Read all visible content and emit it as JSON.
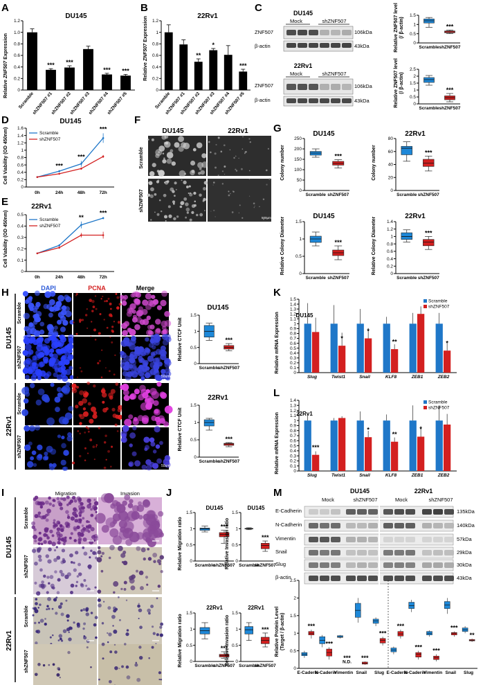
{
  "panels": {
    "A": {
      "letter": "A",
      "title": "DU145",
      "ylabel_pre": "Relative ",
      "ylabel_gene": "ZNF507",
      "ylabel_post": " Expression"
    },
    "B": {
      "letter": "B",
      "title": "22Rv1",
      "ylabel_pre": "Relative ",
      "ylabel_gene": "ZNF507",
      "ylabel_post": " Expression"
    },
    "C": {
      "letter": "C",
      "line1": "DU145",
      "line2": "22Rv1",
      "mock": "Mock",
      "sh": "shZNF507",
      "rows": [
        "ZNF507",
        "β-actin"
      ],
      "kda": [
        "106kDa",
        "43kDa"
      ],
      "ylabel": "Relative ZNF507 level",
      "ylabel2": "(/ β-actin)"
    },
    "D": {
      "letter": "D",
      "title": "DU145",
      "ylabel": "Cell Viability (OD 450nm)"
    },
    "E": {
      "letter": "E",
      "title": "22Rv1",
      "ylabel": "Cell Viability (OD 450nm)"
    },
    "F": {
      "letter": "F",
      "col1": "DU145",
      "col2": "22Rv1",
      "row1": "Scramble",
      "row2": "shZNF507",
      "scale": "500μm"
    },
    "G": {
      "letter": "G",
      "t1": "DU145",
      "t2": "22Rv1",
      "t3": "DU145",
      "t4": "22Rv1",
      "yl1": "Colony number",
      "yl2": "Relative  Colony Diameter"
    },
    "H": {
      "letter": "H",
      "c1": "DAPI",
      "c2": "PCNA",
      "c3": "Merge",
      "r1": "Scramble",
      "r2": "shZNF507",
      "g1": "DU145",
      "g2": "22Rv1",
      "t1": "DU145",
      "t2": "22Rv1",
      "ylabel": "Relative CTCF Unit",
      "scale": "50um"
    },
    "I": {
      "letter": "I",
      "c1": "Migration",
      "c2": "Invasion",
      "r1": "Scramble",
      "r2": "shZNF507",
      "g1": "DU145",
      "g2": "22Rv1"
    },
    "J": {
      "letter": "J",
      "t1": "DU145",
      "t2": "DU145",
      "t3": "22Rv1",
      "t4": "22Rv1",
      "yl1": "Relative Migration ratio",
      "yl2": "Relative Invasion ratio"
    },
    "K": {
      "letter": "K",
      "title": "DU145",
      "ylabel": "Relative mRNA Expression"
    },
    "L": {
      "letter": "L",
      "title": "22Rv1",
      "ylabel": "Relative mRNA Expression"
    },
    "M": {
      "letter": "M",
      "g1": "DU145",
      "g2": "22Rv1",
      "mock": "Mock",
      "sh": "shZNF507",
      "rows": [
        "E-Cadherin",
        "N-Cadherin",
        "Vimentin",
        "Snail",
        "Slug",
        "β-actin"
      ],
      "kda": [
        "135kDa",
        "140kDa",
        "57kDa",
        "29kDa",
        "30kDa",
        "43kDa"
      ],
      "ylabel": "Relative Protein Level",
      "ylabel2": "(Target / β-actin)",
      "nd": "N.D."
    }
  },
  "colors": {
    "scramble": "#1f77c8",
    "sh": "#d32020",
    "boxblue": "#1e88d8",
    "boxred": "#d11f1f",
    "bar_black": "#000000"
  },
  "chart_data": [
    {
      "id": "A",
      "type": "bar",
      "title": "DU145",
      "ylabel": "Relative ZNF507 Expression",
      "categories": [
        "Scramble",
        "shZNF507 #1",
        "shZNF507 #2",
        "shZNF507 #3",
        "shZNF507 #4",
        "shZNF507 #5"
      ],
      "values": [
        1.0,
        0.35,
        0.39,
        0.71,
        0.27,
        0.25
      ],
      "errors": [
        0.06,
        0.02,
        0.03,
        0.05,
        0.02,
        0.02
      ],
      "sig": [
        "",
        "***",
        "***",
        "",
        "***",
        "***"
      ],
      "ylim": [
        0,
        1.2
      ],
      "yticks": [
        "0",
        "0.2",
        "0.4",
        "0.6",
        "0.8",
        "1.0",
        "1.2"
      ]
    },
    {
      "id": "B",
      "type": "bar",
      "title": "22Rv1",
      "ylabel": "Relative ZNF507 Expression",
      "categories": [
        "Scramble",
        "shZNF507 #1",
        "shZNF507 #2",
        "shZNF507 #3",
        "shZNF507 #4",
        "shZNF507 #5"
      ],
      "values": [
        1.0,
        0.79,
        0.49,
        0.69,
        0.61,
        0.32
      ],
      "errors": [
        0.13,
        0.08,
        0.05,
        0.03,
        0.16,
        0.04
      ],
      "sig": [
        "",
        "",
        "**",
        "*",
        "",
        "***"
      ],
      "ylim": [
        0,
        1.2
      ],
      "yticks": [
        "0",
        "0.2",
        "0.4",
        "0.6",
        "0.8",
        "1",
        "1.2"
      ]
    },
    {
      "id": "C1",
      "type": "box",
      "ylim": [
        0,
        1.5
      ],
      "yticks": [
        "0",
        "0.5",
        "1",
        "1.5"
      ],
      "categories": [
        "Scramble",
        "shZNF507"
      ],
      "boxes": [
        [
          0.85,
          1.08,
          1.2,
          1.3,
          1.38
        ],
        [
          0.5,
          0.55,
          0.6,
          0.65,
          0.7
        ]
      ],
      "sig": [
        "",
        "***"
      ]
    },
    {
      "id": "C2",
      "type": "box",
      "ylim": [
        0,
        2.5
      ],
      "yticks": [
        "0",
        "0.5",
        "1",
        "1.5",
        "2",
        "2.5"
      ],
      "categories": [
        "Scramble",
        "shZNF507"
      ],
      "boxes": [
        [
          1.35,
          1.55,
          1.75,
          1.9,
          2.05
        ],
        [
          0.15,
          0.3,
          0.45,
          0.58,
          0.75
        ]
      ],
      "sig": [
        "",
        "***"
      ]
    },
    {
      "id": "D",
      "type": "line",
      "title": "DU145",
      "x": [
        "0h",
        "24h",
        "48h",
        "72h"
      ],
      "series": [
        {
          "name": "Scramble",
          "values": [
            0.27,
            0.43,
            0.63,
            1.33
          ],
          "errors": [
            0.01,
            0.03,
            0.08,
            0.13
          ]
        },
        {
          "name": "shZNF507",
          "values": [
            0.27,
            0.36,
            0.5,
            0.83
          ],
          "errors": [
            0.01,
            0.02,
            0.03,
            0.04
          ]
        }
      ],
      "sig": [
        "",
        "***",
        "***",
        "***"
      ],
      "ylim": [
        0,
        1.6
      ],
      "yticks": [
        "0",
        "0.2",
        "0.4",
        "0.6",
        "0.8",
        "1",
        "1.2",
        "1.4",
        "1.6"
      ]
    },
    {
      "id": "E",
      "type": "line",
      "title": "22Rv1",
      "x": [
        "0h",
        "24h",
        "48h",
        "72h"
      ],
      "series": [
        {
          "name": "Scramble",
          "values": [
            0.16,
            0.23,
            0.41,
            0.47
          ],
          "errors": [
            0.005,
            0.01,
            0.03,
            0.01
          ]
        },
        {
          "name": "shZNF507",
          "values": [
            0.16,
            0.21,
            0.32,
            0.32
          ],
          "errors": [
            0.005,
            0.01,
            0.02,
            0.03
          ]
        }
      ],
      "sig": [
        "",
        "",
        "**",
        "***"
      ],
      "ylim": [
        0,
        0.5
      ],
      "yticks": [
        "0",
        "0.1",
        "0.2",
        "0.3",
        "0.4",
        "0.5"
      ]
    },
    {
      "id": "G1",
      "type": "box",
      "title": "DU145",
      "ylim": [
        0,
        250
      ],
      "yticks": [
        "0",
        "50",
        "100",
        "150",
        "200",
        "250"
      ],
      "categories": [
        "Scramble",
        "shZNF507"
      ],
      "boxes": [
        [
          160,
          170,
          180,
          188,
          200
        ],
        [
          108,
          122,
          130,
          140,
          148
        ]
      ],
      "sig": [
        "",
        "***"
      ]
    },
    {
      "id": "G2",
      "type": "box",
      "title": "22Rv1",
      "ylim": [
        0,
        80
      ],
      "yticks": [
        "0",
        "20",
        "40",
        "60",
        "80"
      ],
      "categories": [
        "Scramble",
        "shZNF507"
      ],
      "boxes": [
        [
          45,
          55,
          65,
          68,
          75
        ],
        [
          30,
          37,
          42,
          48,
          53
        ]
      ],
      "sig": [
        "",
        "***"
      ]
    },
    {
      "id": "G3",
      "type": "box",
      "title": "DU145",
      "ylim": [
        0,
        1.5
      ],
      "yticks": [
        "0",
        "0.5",
        "1",
        "1.5"
      ],
      "categories": [
        "Scramble",
        "shZNF507"
      ],
      "boxes": [
        [
          0.8,
          0.9,
          1.0,
          1.08,
          1.2
        ],
        [
          0.4,
          0.52,
          0.6,
          0.68,
          0.8
        ]
      ],
      "sig": [
        "",
        "***"
      ]
    },
    {
      "id": "G4",
      "type": "box",
      "title": "22Rv1",
      "ylim": [
        0,
        1.4
      ],
      "yticks": [
        "0",
        "0.2",
        "0.4",
        "0.6",
        "0.8",
        "1",
        "1.2",
        "1.4"
      ],
      "categories": [
        "Scramble",
        "shZNF507"
      ],
      "boxes": [
        [
          0.85,
          0.92,
          1.0,
          1.1,
          1.18
        ],
        [
          0.65,
          0.75,
          0.85,
          0.92,
          1.0
        ]
      ],
      "sig": [
        "",
        "***"
      ]
    },
    {
      "id": "H1",
      "type": "box",
      "title": "DU145",
      "ylim": [
        0,
        1.5
      ],
      "yticks": [
        "0",
        "0.5",
        "1",
        "1.5"
      ],
      "categories": [
        "Scramble",
        "shZNF507"
      ],
      "boxes": [
        [
          0.72,
          0.82,
          1.0,
          1.18,
          1.25
        ],
        [
          0.4,
          0.45,
          0.5,
          0.56,
          0.62
        ]
      ],
      "sig": [
        "",
        "***"
      ]
    },
    {
      "id": "H2",
      "type": "box",
      "title": "22Rv1",
      "ylim": [
        0,
        1.5
      ],
      "yticks": [
        "0",
        "0.5",
        "1",
        "1.5"
      ],
      "categories": [
        "Scramble",
        "shZNF507"
      ],
      "boxes": [
        [
          0.78,
          0.9,
          1.0,
          1.08,
          1.12
        ],
        [
          0.3,
          0.34,
          0.38,
          0.4,
          0.42
        ]
      ],
      "sig": [
        "",
        "***"
      ]
    },
    {
      "id": "J1",
      "type": "box",
      "title": "DU145",
      "ylim": [
        0,
        1.5
      ],
      "yticks": [
        "0",
        "0.5",
        "1",
        "1.5"
      ],
      "categories": [
        "Scramble",
        "shZNF507"
      ],
      "boxes": [
        [
          0.9,
          0.95,
          1.0,
          1.02,
          1.08
        ],
        [
          0.55,
          0.75,
          0.82,
          0.88,
          0.95
        ]
      ],
      "sig": [
        "",
        "***"
      ]
    },
    {
      "id": "J2",
      "type": "box",
      "title": "DU145",
      "ylim": [
        0,
        1.5
      ],
      "yticks": [
        "0",
        "0.5",
        "1",
        "1.5"
      ],
      "categories": [
        "Scramble",
        "shZNF507"
      ],
      "boxes": [
        [
          0.97,
          0.99,
          1.0,
          1.01,
          1.03
        ],
        [
          0.3,
          0.38,
          0.48,
          0.55,
          0.62
        ]
      ],
      "sig": [
        "",
        "***"
      ]
    },
    {
      "id": "J3",
      "type": "box",
      "title": "22Rv1",
      "ylim": [
        0,
        1.5
      ],
      "yticks": [
        "0",
        "0.5",
        "1",
        "1.5"
      ],
      "categories": [
        "Scramble",
        "shZNF507"
      ],
      "boxes": [
        [
          0.7,
          0.85,
          0.95,
          1.05,
          1.2
        ],
        [
          0.1,
          0.14,
          0.18,
          0.22,
          0.3
        ]
      ],
      "sig": [
        "",
        "***"
      ]
    },
    {
      "id": "J4",
      "type": "box",
      "title": "22Rv1",
      "ylim": [
        0,
        1.5
      ],
      "yticks": [
        "0",
        "0.5",
        "1",
        "1.5"
      ],
      "categories": [
        "Scramble",
        "shZNF507"
      ],
      "boxes": [
        [
          0.65,
          0.85,
          0.98,
          1.08,
          1.2
        ],
        [
          0.45,
          0.55,
          0.65,
          0.75,
          0.88
        ]
      ],
      "sig": [
        "",
        "***"
      ]
    },
    {
      "id": "K",
      "type": "bar",
      "title": "DU145",
      "ylabel": "Relative mRNA Expression",
      "categories": [
        "Slug",
        "Twist1",
        "Snail",
        "KLF8",
        "ZEB1",
        "ZEB2"
      ],
      "series": [
        {
          "name": "Scramble",
          "values": [
            1.0,
            1.0,
            1.0,
            1.0,
            1.0,
            1.0
          ],
          "errors": [
            0.42,
            0.38,
            0.3,
            0.14,
            0.22,
            0.22
          ]
        },
        {
          "name": "shZNF507",
          "values": [
            0.83,
            0.55,
            0.7,
            0.48,
            1.2,
            0.45
          ]
        }
      ],
      "sig": [
        "",
        "*",
        "*",
        "**",
        "",
        "*"
      ],
      "ylim": [
        0,
        1.5
      ],
      "yticks": [
        "0",
        "0.1",
        "0.2",
        "0.3",
        "0.4",
        "0.5",
        "0.6",
        "0.7",
        "0.8",
        "0.9",
        "1",
        "1.1",
        "1.2",
        "1.3",
        "1.4",
        "1.5"
      ]
    },
    {
      "id": "L",
      "type": "bar",
      "title": "22Rv1",
      "ylabel": "Relative mRNA Expression",
      "categories": [
        "Slug",
        "Twist1",
        "Snail",
        "KLF8",
        "ZEB1",
        "ZEB2"
      ],
      "series": [
        {
          "name": "Scramble",
          "values": [
            1.0,
            1.0,
            1.0,
            1.0,
            1.0,
            1.0
          ],
          "errors": [
            0.1,
            0.05,
            0.18,
            0.12,
            0.3,
            0.3
          ]
        },
        {
          "name": "shZNF507",
          "values": [
            0.32,
            1.05,
            0.67,
            0.58,
            0.68,
            0.92
          ]
        }
      ],
      "sig": [
        "***",
        "",
        "*",
        "**",
        "*",
        ""
      ],
      "ylim": [
        0,
        1.4
      ],
      "yticks": [
        "0",
        "0.1",
        "0.2",
        "0.3",
        "0.4",
        "0.5",
        "0.6",
        "0.7",
        "0.8",
        "0.9",
        "1",
        "1.1",
        "1.2",
        "1.3",
        "1.4"
      ]
    },
    {
      "id": "M",
      "type": "box",
      "ylabel": "Relative Protein Level (Target / β-actin)",
      "categories": [
        "E-Caderin",
        "N-Caderin",
        "Vimentin",
        "Snail",
        "Slug",
        "E-Caderin",
        "N-Caderin",
        "Vimentin",
        "Snail",
        "Slug"
      ],
      "ylim": [
        0,
        2.5
      ],
      "yticks": [
        "0",
        "0.5",
        "1",
        "1.5",
        "2",
        "2.5"
      ],
      "pairs": [
        [
          [
            0.3,
            0.36,
            0.4,
            0.45,
            0.5
          ],
          [
            0.85,
            0.95,
            1.0,
            1.05,
            1.1
          ]
        ],
        [
          [
            0.6,
            0.7,
            0.8,
            0.9,
            0.95
          ],
          [
            0.25,
            0.35,
            0.45,
            0.55,
            0.6
          ]
        ],
        [
          [
            0.85,
            0.88,
            0.9,
            0.93,
            0.95
          ],
          null
        ],
        [
          [
            1.3,
            1.45,
            1.65,
            1.85,
            2.0
          ],
          [
            0.1,
            0.12,
            0.15,
            0.18,
            0.2
          ]
        ],
        [
          [
            1.2,
            1.28,
            1.35,
            1.4,
            1.45
          ],
          [
            0.65,
            0.72,
            0.8,
            0.85,
            0.9
          ]
        ],
        [
          [
            0.4,
            0.47,
            0.52,
            0.58,
            0.62
          ],
          [
            0.85,
            0.92,
            0.98,
            1.05,
            1.1
          ]
        ],
        [
          [
            1.6,
            1.7,
            1.78,
            1.88,
            1.95
          ],
          [
            0.25,
            0.32,
            0.4,
            0.45,
            0.5
          ]
        ],
        [
          [
            0.9,
            0.95,
            1.0,
            1.05,
            1.08
          ],
          [
            0.2,
            0.25,
            0.3,
            0.35,
            0.4
          ]
        ],
        [
          [
            1.55,
            1.7,
            1.8,
            1.9,
            2.0
          ],
          [
            0.9,
            0.95,
            1.0,
            1.02,
            1.05
          ]
        ],
        [
          [
            1.0,
            1.05,
            1.1,
            1.15,
            1.2
          ],
          [
            0.75,
            0.78,
            0.8,
            0.82,
            0.85
          ]
        ]
      ],
      "sig": [
        "***",
        "***",
        "***",
        "***",
        "***",
        "***",
        "***",
        "***",
        "***",
        "**"
      ]
    }
  ]
}
